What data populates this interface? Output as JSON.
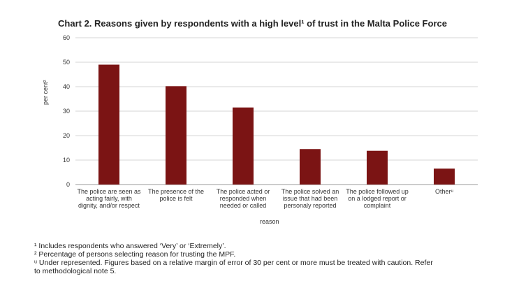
{
  "chart_data": {
    "type": "bar",
    "title": "Chart 2. Reasons given by respondents with a high level¹ of trust in the Malta Police Force",
    "xlabel": "reason",
    "ylabel": "per cent²",
    "ylim": [
      0,
      60
    ],
    "yticks": [
      0,
      10,
      20,
      30,
      40,
      50,
      60
    ],
    "grid": true,
    "legend": "none",
    "bar_color": "#7b1414",
    "categories": [
      "The police are seen as acting fairly, with dignity, and/or respect",
      "The presence of the police is felt",
      "The police acted or responded when needed or called",
      "The police solved an issue that had been personaly reported",
      "The police followed up on a lodged report or complaint",
      "Otherᵘ"
    ],
    "category_lines": [
      [
        "The police are seen as",
        "acting fairly, with",
        "dignity, and/or respect"
      ],
      [
        "The presence of the",
        "police is felt"
      ],
      [
        "The police acted or",
        "responded when",
        "needed or called"
      ],
      [
        "The police solved an",
        "issue that had been",
        "personaly reported"
      ],
      [
        "The police followed up",
        "on a lodged report or",
        "complaint"
      ],
      [
        "Otherᵘ"
      ]
    ],
    "values": [
      49,
      40.2,
      31.5,
      14.5,
      13.8,
      6.5
    ]
  },
  "footnotes": [
    "¹ Includes respondents who answered ‘Very’ or ‘Extremely’.",
    "² Percentage of persons selecting reason for trusting the MPF.",
    "ᵘ Under represented. Figures based on a relative margin of error of 30 per cent or more must be treated with caution. Refer",
    "to methodological note 5."
  ]
}
